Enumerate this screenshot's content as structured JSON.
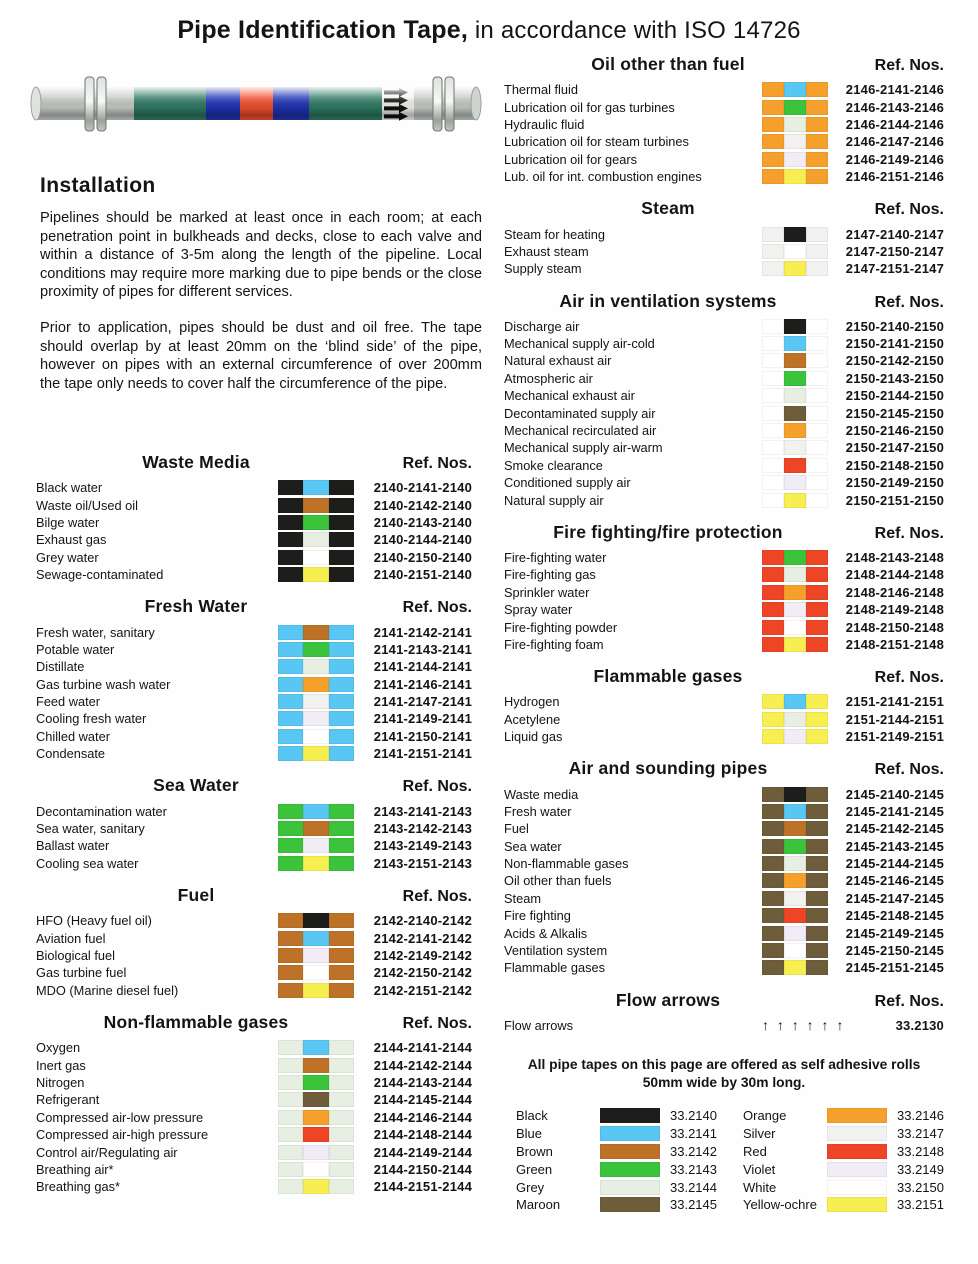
{
  "title": {
    "bold": "Pipe Identification Tape,",
    "rest": " in accordance with ISO 14726"
  },
  "installation": {
    "heading": "Installation",
    "para1": "Pipelines should be marked at least once in each room; at each penetration point in bulkheads and decks, close to each valve and within a distance of 3-5m along the length of the pipeline. Local conditions may require more marking due to pipe bends or the close proximity of pipes for different services.",
    "para2": "Prior to application, pipes should be dust and oil free. The tape should overlap by at least 20mm on the ‘blind side’ of the pipe, however on pipes with an external circumference of over 200mm the tape only needs to cover half the circumference of the pipe."
  },
  "palette": {
    "black": "#1d1d1b",
    "blue": "#58c7f3",
    "brown": "#bd7228",
    "green": "#3bc43b",
    "grey": "#e6efe2",
    "maroon": "#6e5d3a",
    "orange": "#f5a02c",
    "silver": "#f1f1ef",
    "red": "#ee4527",
    "violet": "#f1ecf6",
    "white": "#ffffff",
    "yellow": "#f7ee52"
  },
  "columns": {
    "left": [
      {
        "title": "Waste Media",
        "ref_header": "Ref. Nos.",
        "rows": [
          {
            "label": "Black water",
            "bands": [
              "black",
              "blue",
              "black"
            ],
            "ref": "2140-2141-2140"
          },
          {
            "label": "Waste oil/Used oil",
            "bands": [
              "black",
              "brown",
              "black"
            ],
            "ref": "2140-2142-2140"
          },
          {
            "label": "Bilge water",
            "bands": [
              "black",
              "green",
              "black"
            ],
            "ref": "2140-2143-2140"
          },
          {
            "label": "Exhaust gas",
            "bands": [
              "black",
              "grey",
              "black"
            ],
            "ref": "2140-2144-2140"
          },
          {
            "label": "Grey water",
            "bands": [
              "black",
              "white",
              "black"
            ],
            "ref": "2140-2150-2140"
          },
          {
            "label": "Sewage-contaminated",
            "bands": [
              "black",
              "yellow",
              "black"
            ],
            "ref": "2140-2151-2140"
          }
        ]
      },
      {
        "title": "Fresh Water",
        "ref_header": "Ref. Nos.",
        "rows": [
          {
            "label": "Fresh water, sanitary",
            "bands": [
              "blue",
              "brown",
              "blue"
            ],
            "ref": "2141-2142-2141"
          },
          {
            "label": "Potable water",
            "bands": [
              "blue",
              "green",
              "blue"
            ],
            "ref": "2141-2143-2141"
          },
          {
            "label": "Distillate",
            "bands": [
              "blue",
              "grey",
              "blue"
            ],
            "ref": "2141-2144-2141"
          },
          {
            "label": "Gas turbine wash water",
            "bands": [
              "blue",
              "orange",
              "blue"
            ],
            "ref": "2141-2146-2141"
          },
          {
            "label": "Feed water",
            "bands": [
              "blue",
              "silver",
              "blue"
            ],
            "ref": "2141-2147-2141"
          },
          {
            "label": "Cooling fresh water",
            "bands": [
              "blue",
              "violet",
              "blue"
            ],
            "ref": "2141-2149-2141"
          },
          {
            "label": "Chilled water",
            "bands": [
              "blue",
              "white",
              "blue"
            ],
            "ref": "2141-2150-2141"
          },
          {
            "label": "Condensate",
            "bands": [
              "blue",
              "yellow",
              "blue"
            ],
            "ref": "2141-2151-2141"
          }
        ]
      },
      {
        "title": "Sea Water",
        "ref_header": "Ref. Nos.",
        "rows": [
          {
            "label": "Decontamination water",
            "bands": [
              "green",
              "blue",
              "green"
            ],
            "ref": "2143-2141-2143"
          },
          {
            "label": "Sea water, sanitary",
            "bands": [
              "green",
              "brown",
              "green"
            ],
            "ref": "2143-2142-2143"
          },
          {
            "label": "Ballast water",
            "bands": [
              "green",
              "violet",
              "green"
            ],
            "ref": "2143-2149-2143"
          },
          {
            "label": "Cooling sea water",
            "bands": [
              "green",
              "yellow",
              "green"
            ],
            "ref": "2143-2151-2143"
          }
        ]
      },
      {
        "title": "Fuel",
        "ref_header": "Ref. Nos.",
        "rows": [
          {
            "label": "HFO (Heavy fuel oil)",
            "bands": [
              "brown",
              "black",
              "brown"
            ],
            "ref": "2142-2140-2142"
          },
          {
            "label": "Aviation fuel",
            "bands": [
              "brown",
              "blue",
              "brown"
            ],
            "ref": "2142-2141-2142"
          },
          {
            "label": "Biological fuel",
            "bands": [
              "brown",
              "violet",
              "brown"
            ],
            "ref": "2142-2149-2142"
          },
          {
            "label": "Gas turbine fuel",
            "bands": [
              "brown",
              "white",
              "brown"
            ],
            "ref": "2142-2150-2142"
          },
          {
            "label": "MDO (Marine diesel fuel)",
            "bands": [
              "brown",
              "yellow",
              "brown"
            ],
            "ref": "2142-2151-2142"
          }
        ]
      },
      {
        "title": "Non-flammable gases",
        "ref_header": "Ref. Nos.",
        "rows": [
          {
            "label": "Oxygen",
            "bands": [
              "grey",
              "blue",
              "grey"
            ],
            "ref": "2144-2141-2144"
          },
          {
            "label": "Inert gas",
            "bands": [
              "grey",
              "brown",
              "grey"
            ],
            "ref": "2144-2142-2144"
          },
          {
            "label": "Nitrogen",
            "bands": [
              "grey",
              "green",
              "grey"
            ],
            "ref": "2144-2143-2144"
          },
          {
            "label": "Refrigerant",
            "bands": [
              "grey",
              "maroon",
              "grey"
            ],
            "ref": "2144-2145-2144"
          },
          {
            "label": "Compressed air-low pressure",
            "bands": [
              "grey",
              "orange",
              "grey"
            ],
            "ref": "2144-2146-2144"
          },
          {
            "label": "Compressed air-high pressure",
            "bands": [
              "grey",
              "red",
              "grey"
            ],
            "ref": "2144-2148-2144"
          },
          {
            "label": "Control air/Regulating air",
            "bands": [
              "grey",
              "violet",
              "grey"
            ],
            "ref": "2144-2149-2144"
          },
          {
            "label": "Breathing air*",
            "bands": [
              "grey",
              "white",
              "grey"
            ],
            "ref": "2144-2150-2144"
          },
          {
            "label": "Breathing gas*",
            "bands": [
              "grey",
              "yellow",
              "grey"
            ],
            "ref": "2144-2151-2144"
          }
        ]
      }
    ],
    "right": [
      {
        "title": "Oil other than fuel",
        "ref_header": "Ref. Nos.",
        "rows": [
          {
            "label": "Thermal fluid",
            "bands": [
              "orange",
              "blue",
              "orange"
            ],
            "ref": "2146-2141-2146"
          },
          {
            "label": "Lubrication oil for gas turbines",
            "bands": [
              "orange",
              "green",
              "orange"
            ],
            "ref": "2146-2143-2146"
          },
          {
            "label": "Hydraulic fluid",
            "bands": [
              "orange",
              "grey",
              "orange"
            ],
            "ref": "2146-2144-2146"
          },
          {
            "label": "Lubrication oil for steam turbines",
            "bands": [
              "orange",
              "silver",
              "orange"
            ],
            "ref": "2146-2147-2146"
          },
          {
            "label": "Lubrication oil for gears",
            "bands": [
              "orange",
              "violet",
              "orange"
            ],
            "ref": "2146-2149-2146"
          },
          {
            "label": "Lub. oil for int. combustion engines",
            "bands": [
              "orange",
              "yellow",
              "orange"
            ],
            "ref": "2146-2151-2146"
          }
        ]
      },
      {
        "title": "Steam",
        "ref_header": "Ref. Nos.",
        "rows": [
          {
            "label": "Steam for heating",
            "bands": [
              "silver",
              "black",
              "silver"
            ],
            "ref": "2147-2140-2147"
          },
          {
            "label": "Exhaust steam",
            "bands": [
              "silver",
              "white",
              "silver"
            ],
            "ref": "2147-2150-2147"
          },
          {
            "label": "Supply steam",
            "bands": [
              "silver",
              "yellow",
              "silver"
            ],
            "ref": "2147-2151-2147"
          }
        ]
      },
      {
        "title": "Air in ventilation systems",
        "ref_header": "Ref. Nos.",
        "rows": [
          {
            "label": "Discharge air",
            "bands": [
              "white",
              "black",
              "white"
            ],
            "ref": "2150-2140-2150"
          },
          {
            "label": "Mechanical supply air-cold",
            "bands": [
              "white",
              "blue",
              "white"
            ],
            "ref": "2150-2141-2150"
          },
          {
            "label": "Natural exhaust air",
            "bands": [
              "white",
              "brown",
              "white"
            ],
            "ref": "2150-2142-2150"
          },
          {
            "label": "Atmospheric air",
            "bands": [
              "white",
              "green",
              "white"
            ],
            "ref": "2150-2143-2150"
          },
          {
            "label": "Mechanical exhaust air",
            "bands": [
              "white",
              "grey",
              "white"
            ],
            "ref": "2150-2144-2150"
          },
          {
            "label": "Decontaminated supply air",
            "bands": [
              "white",
              "maroon",
              "white"
            ],
            "ref": "2150-2145-2150"
          },
          {
            "label": "Mechanical recirculated air",
            "bands": [
              "white",
              "orange",
              "white"
            ],
            "ref": "2150-2146-2150"
          },
          {
            "label": "Mechanical supply air-warm",
            "bands": [
              "white",
              "silver",
              "white"
            ],
            "ref": "2150-2147-2150"
          },
          {
            "label": "Smoke clearance",
            "bands": [
              "white",
              "red",
              "white"
            ],
            "ref": "2150-2148-2150"
          },
          {
            "label": "Conditioned supply air",
            "bands": [
              "white",
              "violet",
              "white"
            ],
            "ref": "2150-2149-2150"
          },
          {
            "label": "Natural supply air",
            "bands": [
              "white",
              "yellow",
              "white"
            ],
            "ref": "2150-2151-2150"
          }
        ]
      },
      {
        "title": "Fire fighting/fire protection",
        "ref_header": "Ref. Nos.",
        "rows": [
          {
            "label": "Fire-fighting water",
            "bands": [
              "red",
              "green",
              "red"
            ],
            "ref": "2148-2143-2148"
          },
          {
            "label": "Fire-fighting gas",
            "bands": [
              "red",
              "grey",
              "red"
            ],
            "ref": "2148-2144-2148"
          },
          {
            "label": "Sprinkler water",
            "bands": [
              "red",
              "orange",
              "red"
            ],
            "ref": "2148-2146-2148"
          },
          {
            "label": "Spray water",
            "bands": [
              "red",
              "violet",
              "red"
            ],
            "ref": "2148-2149-2148"
          },
          {
            "label": "Fire-fighting powder",
            "bands": [
              "red",
              "white",
              "red"
            ],
            "ref": "2148-2150-2148"
          },
          {
            "label": "Fire-fighting foam",
            "bands": [
              "red",
              "yellow",
              "red"
            ],
            "ref": "2148-2151-2148"
          }
        ]
      },
      {
        "title": "Flammable gases",
        "ref_header": "Ref. Nos.",
        "rows": [
          {
            "label": "Hydrogen",
            "bands": [
              "yellow",
              "blue",
              "yellow"
            ],
            "ref": "2151-2141-2151"
          },
          {
            "label": "Acetylene",
            "bands": [
              "yellow",
              "grey",
              "yellow"
            ],
            "ref": "2151-2144-2151"
          },
          {
            "label": "Liquid gas",
            "bands": [
              "yellow",
              "violet",
              "yellow"
            ],
            "ref": "2151-2149-2151"
          }
        ]
      },
      {
        "title": "Air and sounding pipes",
        "ref_header": "Ref. Nos.",
        "rows": [
          {
            "label": "Waste media",
            "bands": [
              "maroon",
              "black",
              "maroon"
            ],
            "ref": "2145-2140-2145"
          },
          {
            "label": "Fresh water",
            "bands": [
              "maroon",
              "blue",
              "maroon"
            ],
            "ref": "2145-2141-2145"
          },
          {
            "label": "Fuel",
            "bands": [
              "maroon",
              "brown",
              "maroon"
            ],
            "ref": "2145-2142-2145"
          },
          {
            "label": "Sea water",
            "bands": [
              "maroon",
              "green",
              "maroon"
            ],
            "ref": "2145-2143-2145"
          },
          {
            "label": "Non-flammable gases",
            "bands": [
              "maroon",
              "grey",
              "maroon"
            ],
            "ref": "2145-2144-2145"
          },
          {
            "label": "Oil other than fuels",
            "bands": [
              "maroon",
              "orange",
              "maroon"
            ],
            "ref": "2145-2146-2145"
          },
          {
            "label": "Steam",
            "bands": [
              "maroon",
              "silver",
              "maroon"
            ],
            "ref": "2145-2147-2145"
          },
          {
            "label": "Fire fighting",
            "bands": [
              "maroon",
              "red",
              "maroon"
            ],
            "ref": "2145-2148-2145"
          },
          {
            "label": "Acids & Alkalis",
            "bands": [
              "maroon",
              "violet",
              "maroon"
            ],
            "ref": "2145-2149-2145"
          },
          {
            "label": "Ventilation system",
            "bands": [
              "maroon",
              "white",
              "maroon"
            ],
            "ref": "2145-2150-2145"
          },
          {
            "label": "Flammable gases",
            "bands": [
              "maroon",
              "yellow",
              "maroon"
            ],
            "ref": "2145-2151-2145"
          }
        ]
      },
      {
        "title": "Flow arrows",
        "ref_header": "Ref. Nos.",
        "rows": [
          {
            "label": "Flow arrows",
            "arrows": "↑ ↑ ↑ ↑ ↑ ↑",
            "ref": "33.2130"
          }
        ]
      }
    ]
  },
  "note": "All pipe tapes on this page are offered as self adhesive rolls 50mm wide by 30m long.",
  "legend": {
    "columns": [
      [
        {
          "name": "Black",
          "color": "black",
          "ref": "33.2140"
        },
        {
          "name": "Blue",
          "color": "blue",
          "ref": "33.2141"
        },
        {
          "name": "Brown",
          "color": "brown",
          "ref": "33.2142"
        },
        {
          "name": "Green",
          "color": "green",
          "ref": "33.2143"
        },
        {
          "name": "Grey",
          "color": "grey",
          "ref": "33.2144"
        },
        {
          "name": "Maroon",
          "color": "maroon",
          "ref": "33.2145"
        }
      ],
      [
        {
          "name": "Orange",
          "color": "orange",
          "ref": "33.2146"
        },
        {
          "name": "Silver",
          "color": "silver",
          "ref": "33.2147"
        },
        {
          "name": "Red",
          "color": "red",
          "ref": "33.2148"
        },
        {
          "name": "Violet",
          "color": "violet",
          "ref": "33.2149"
        },
        {
          "name": "White",
          "color": "white",
          "ref": "33.2150"
        },
        {
          "name": "Yellow-ochre",
          "color": "yellow",
          "ref": "33.2151"
        }
      ]
    ]
  }
}
